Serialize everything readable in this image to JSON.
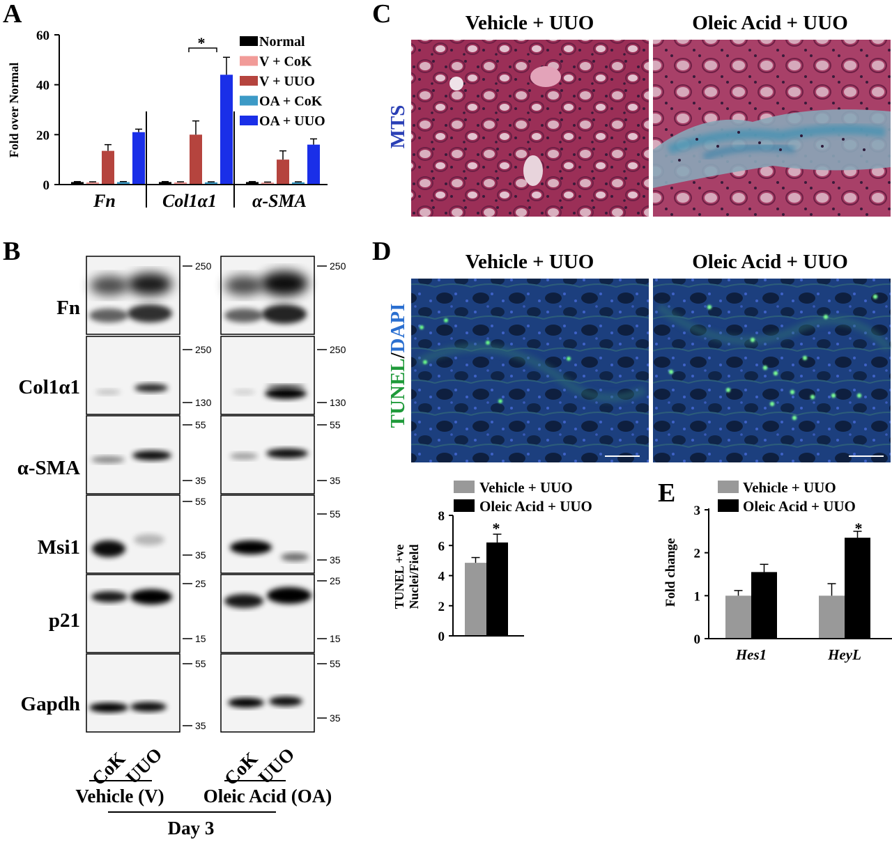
{
  "panels": {
    "A": "A",
    "B": "B",
    "C": "C",
    "D": "D",
    "E": "E"
  },
  "colors": {
    "normal": "#000000",
    "v_cok": "#f19b98",
    "v_uuo": "#b5443e",
    "oa_cok": "#3c9ac6",
    "oa_uuo": "#1a2fe8",
    "vehicle_uuo": "#999999",
    "oleic_uuo": "#000000"
  },
  "panel_c": {
    "col1": "Vehicle + UUO",
    "col2": "Oleic Acid + UUO",
    "stain_label": "MTS"
  },
  "panel_d": {
    "col1": "Vehicle + UUO",
    "col2": "Oleic Acid + UUO",
    "stain_label_tunel": "TUNEL",
    "stain_sep": "/",
    "stain_label_dapi": "DAPI"
  },
  "panel_b": {
    "rows": [
      "Fn",
      "Col1α1",
      "α-SMA",
      "Msi1",
      "p21",
      "Gapdh"
    ],
    "mw_left": [
      [
        "250"
      ],
      [
        "250",
        "130"
      ],
      [
        "55",
        "35"
      ],
      [
        "55",
        "35"
      ],
      [
        "25",
        "15"
      ],
      [
        "55",
        "35"
      ]
    ],
    "mw_right": [
      [
        "250"
      ],
      [
        "250",
        "130"
      ],
      [
        "55",
        "35"
      ],
      [
        "55",
        "35"
      ],
      [
        "25",
        "15"
      ],
      [
        "55",
        "35"
      ]
    ],
    "lanes": [
      "CoK",
      "UUO"
    ],
    "group1": "Vehicle (V)",
    "group2": "Oleic Acid (OA)",
    "timepoint": "Day 3"
  },
  "chart_data": [
    {
      "panel": "A",
      "type": "bar",
      "ylabel": "Fold over Normal",
      "ylim": [
        0,
        60
      ],
      "yticks": [
        "0",
        "20",
        "40",
        "60"
      ],
      "categories": [
        "Fn",
        "Col1α1",
        "α-SMA"
      ],
      "series": [
        {
          "name": "Normal",
          "values": [
            1,
            1,
            1
          ],
          "errors": [
            0.2,
            0.2,
            0.2
          ]
        },
        {
          "name": "V + CoK",
          "values": [
            0.9,
            0.9,
            0.8
          ],
          "errors": [
            0.2,
            0.2,
            0.2
          ]
        },
        {
          "name": "V + UUO",
          "values": [
            13.5,
            20,
            10
          ],
          "errors": [
            2.5,
            5.5,
            3.5
          ]
        },
        {
          "name": "OA + CoK",
          "values": [
            1,
            0.9,
            0.9
          ],
          "errors": [
            0.2,
            0.2,
            0.2
          ]
        },
        {
          "name": "OA + UUO",
          "values": [
            21,
            44,
            16
          ],
          "errors": [
            1.2,
            7,
            2.3
          ]
        }
      ],
      "annotation": "*"
    },
    {
      "panel": "D",
      "type": "bar",
      "ylabel_line1": "TUNEL +ve",
      "ylabel_line2": "Nuclei/Field",
      "ylim": [
        0,
        8
      ],
      "yticks": [
        "0",
        "2",
        "4",
        "6",
        "8"
      ],
      "categories": [
        ""
      ],
      "series": [
        {
          "name": "Vehicle + UUO",
          "values": [
            4.85
          ],
          "errors": [
            0.35
          ]
        },
        {
          "name": "Oleic Acid + UUO",
          "values": [
            6.2
          ],
          "errors": [
            0.55
          ]
        }
      ],
      "annotation": "*"
    },
    {
      "panel": "E",
      "type": "bar",
      "ylabel": "Fold change",
      "ylim": [
        0,
        3
      ],
      "yticks": [
        "0",
        "1",
        "2",
        "3"
      ],
      "categories": [
        "Hes1",
        "HeyL"
      ],
      "series": [
        {
          "name": "Vehicle + UUO",
          "values": [
            1.0,
            1.0
          ],
          "errors": [
            0.12,
            0.28
          ]
        },
        {
          "name": "Oleic Acid + UUO",
          "values": [
            1.55,
            2.35
          ],
          "errors": [
            0.18,
            0.15
          ]
        }
      ],
      "annotation": "*"
    }
  ]
}
